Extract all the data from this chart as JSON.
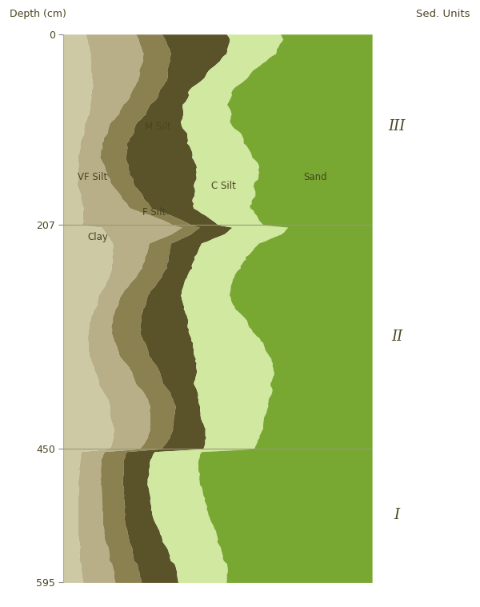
{
  "depth_min": 0,
  "depth_max": 595,
  "unit_boundaries": [
    207,
    450
  ],
  "unit_labels": [
    "III",
    "II",
    "I"
  ],
  "unit_label_depths": [
    100,
    328,
    522
  ],
  "colors": {
    "Clay": "#cdc9a5",
    "VF_Silt": "#b8af88",
    "F_Silt": "#8b8050",
    "M_Silt": "#5a5228",
    "C_Silt": "#d0e8a0",
    "Sand": "#78a832"
  },
  "figsize": [
    6.0,
    7.59
  ],
  "dpi": 100,
  "title_left": "Depth (cm)",
  "title_right": "Sed. Units",
  "plot_xlim": [
    0,
    100
  ],
  "yticks": [
    0,
    207,
    450,
    595
  ],
  "ytick_labels": [
    "0",
    "207",
    "450",
    "595"
  ],
  "label_color": "#4a4520",
  "boundary_color": "#999977",
  "spine_color": "#aaaaaa"
}
